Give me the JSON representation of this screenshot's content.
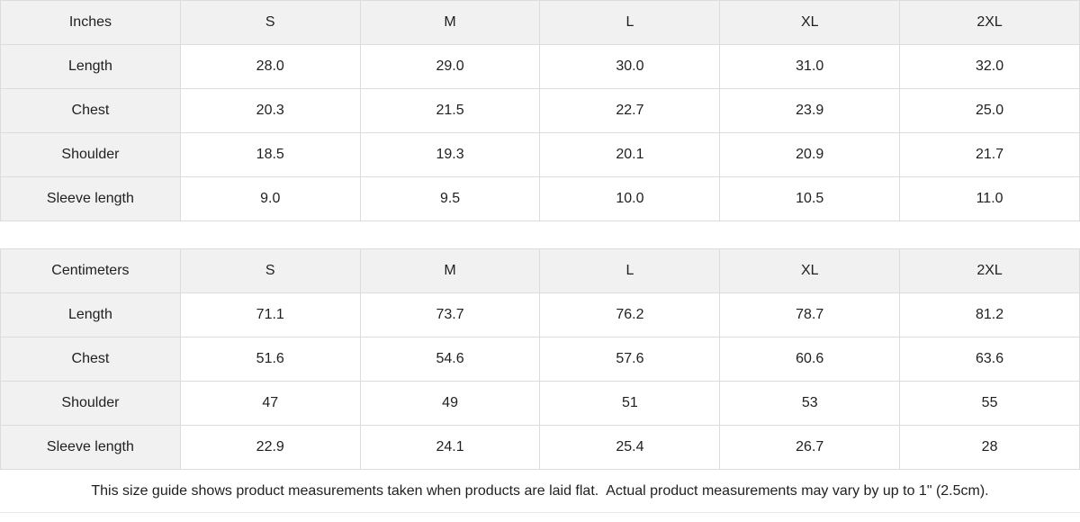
{
  "colors": {
    "header_bg": "#f1f1f1",
    "border": "#dcdcdc",
    "text": "#1f1f1f",
    "background": "#ffffff"
  },
  "chart_data": [
    {
      "type": "table",
      "title": "Inches",
      "columns": [
        "Inches",
        "S",
        "M",
        "L",
        "XL",
        "2XL"
      ],
      "rows": [
        [
          "Length",
          "28.0",
          "29.0",
          "30.0",
          "31.0",
          "32.0"
        ],
        [
          "Chest",
          "20.3",
          "21.5",
          "22.7",
          "23.9",
          "25.0"
        ],
        [
          "Shoulder",
          "18.5",
          "19.3",
          "20.1",
          "20.9",
          "21.7"
        ],
        [
          "Sleeve length",
          "9.0",
          "9.5",
          "10.0",
          "10.5",
          "11.0"
        ]
      ]
    },
    {
      "type": "table",
      "title": "Centimeters",
      "columns": [
        "Centimeters",
        "S",
        "M",
        "L",
        "XL",
        "2XL"
      ],
      "rows": [
        [
          "Length",
          "71.1",
          "73.7",
          "76.2",
          "78.7",
          "81.2"
        ],
        [
          "Chest",
          "51.6",
          "54.6",
          "57.6",
          "60.6",
          "63.6"
        ],
        [
          "Shoulder",
          "47",
          "49",
          "51",
          "53",
          "55"
        ],
        [
          "Sleeve length",
          "22.9",
          "24.1",
          "25.4",
          "26.7",
          "28"
        ]
      ]
    }
  ],
  "footer": {
    "note": "This size guide shows product measurements taken when products are laid flat.  Actual product measurements may vary by up to 1\" (2.5cm)."
  }
}
